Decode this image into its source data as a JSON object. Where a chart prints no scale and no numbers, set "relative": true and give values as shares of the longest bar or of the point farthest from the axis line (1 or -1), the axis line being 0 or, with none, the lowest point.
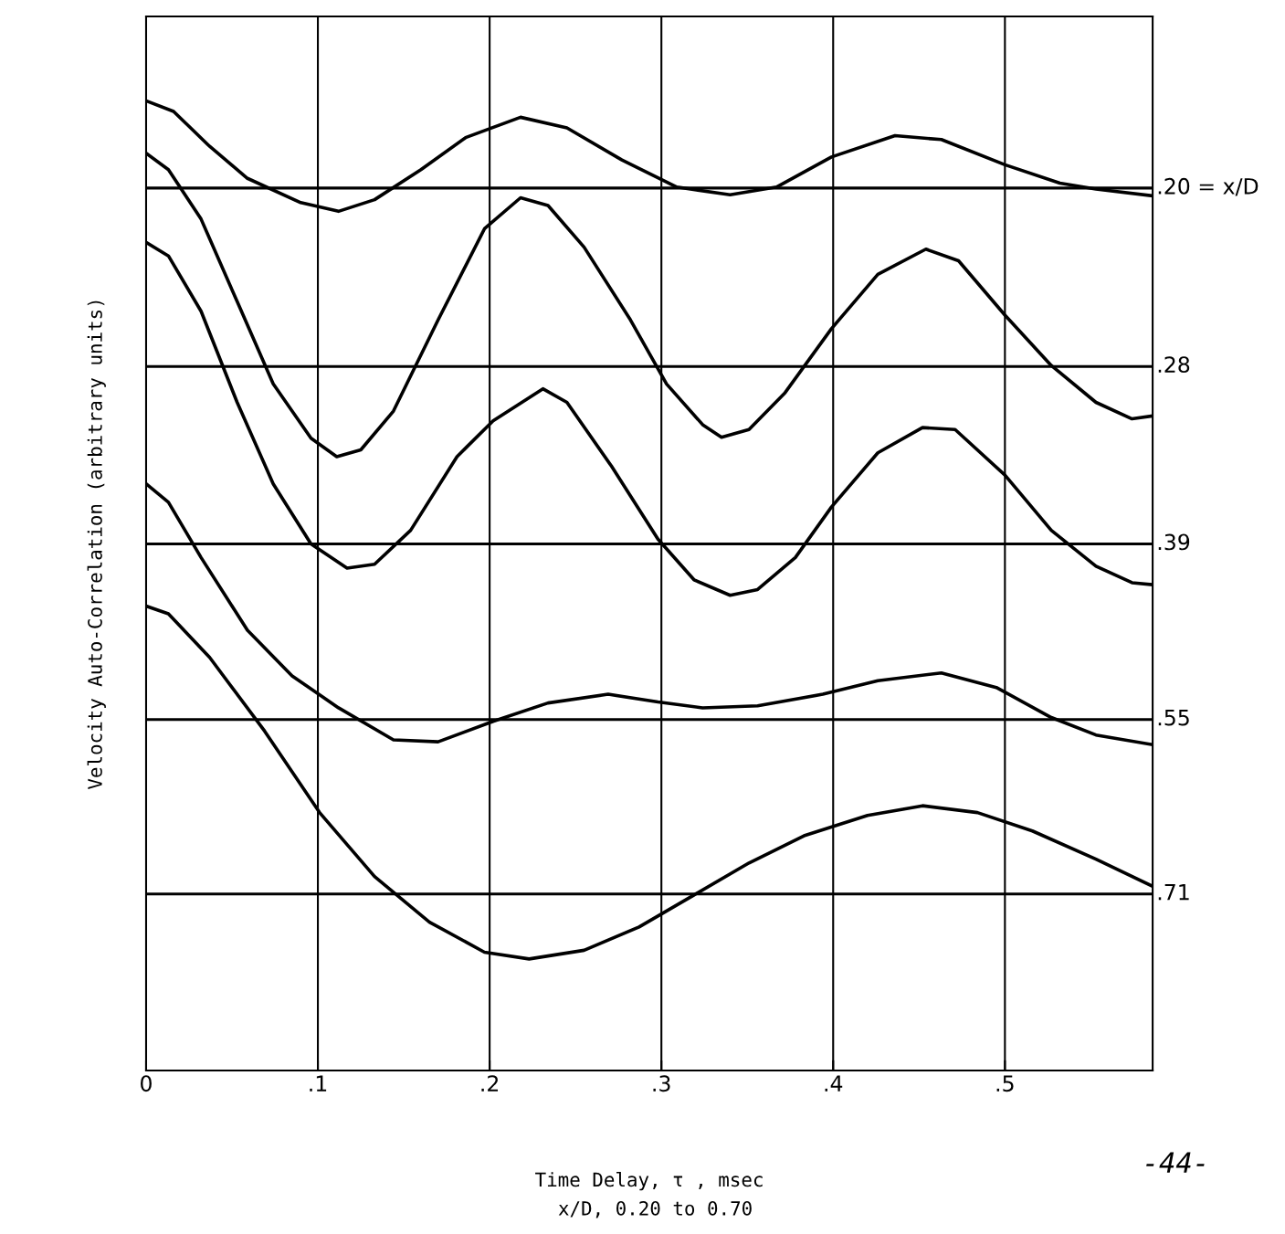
{
  "chart_data": {
    "type": "line",
    "relative": true,
    "xlabel": "Time Delay, τ , msec",
    "ylabel": "Velocity Auto-Correlation (arbitrary units)",
    "annotations": [
      "x/D, 0.20 to 0.70",
      "-44-"
    ],
    "xlim": [
      0,
      0.586
    ],
    "xticks": [
      {
        "value": 0,
        "label": "0"
      },
      {
        "value": 0.1,
        "label": ".1"
      },
      {
        "value": 0.2,
        "label": ".2"
      },
      {
        "value": 0.3,
        "label": ".3"
      },
      {
        "value": 0.4,
        "label": ".4"
      },
      {
        "value": 0.5,
        "label": ".5"
      }
    ],
    "grid": "x",
    "tick_labels": "x",
    "ref_lines": [
      {
        "axis": "y",
        "value": 0.91,
        "color": "#000000"
      },
      {
        "axis": "y",
        "value": 0.726,
        "color": "#000000"
      },
      {
        "axis": "y",
        "value": 0.543,
        "color": "#000000"
      },
      {
        "axis": "y",
        "value": 0.362,
        "color": "#000000"
      },
      {
        "axis": "y",
        "value": 0.182,
        "color": "#000000"
      }
    ],
    "series": [
      {
        "name": ".20 = x/D",
        "color": "#000000",
        "x": [
          0,
          0.016,
          0.037,
          0.059,
          0.09,
          0.112,
          0.133,
          0.16,
          0.186,
          0.218,
          0.245,
          0.277,
          0.309,
          0.34,
          0.367,
          0.399,
          0.436,
          0.463,
          0.5,
          0.532,
          0.553,
          0.586
        ],
        "values": [
          1.0,
          0.989,
          0.953,
          0.92,
          0.895,
          0.886,
          0.898,
          0.929,
          0.962,
          0.983,
          0.972,
          0.939,
          0.911,
          0.903,
          0.911,
          0.942,
          0.964,
          0.96,
          0.934,
          0.915,
          0.909,
          0.902
        ]
      },
      {
        "name": ".28",
        "color": "#000000",
        "x": [
          0,
          0.013,
          0.032,
          0.053,
          0.074,
          0.096,
          0.111,
          0.125,
          0.144,
          0.17,
          0.197,
          0.218,
          0.234,
          0.255,
          0.282,
          0.303,
          0.324,
          0.335,
          0.351,
          0.372,
          0.399,
          0.426,
          0.454,
          0.473,
          0.5,
          0.527,
          0.553,
          0.574,
          0.586
        ],
        "values": [
          0.946,
          0.929,
          0.878,
          0.793,
          0.708,
          0.652,
          0.633,
          0.64,
          0.68,
          0.774,
          0.868,
          0.9,
          0.892,
          0.849,
          0.774,
          0.708,
          0.666,
          0.653,
          0.661,
          0.699,
          0.765,
          0.821,
          0.847,
          0.835,
          0.779,
          0.727,
          0.689,
          0.672,
          0.675
        ]
      },
      {
        "name": ".39",
        "color": "#000000",
        "x": [
          0,
          0.013,
          0.032,
          0.053,
          0.074,
          0.096,
          0.117,
          0.133,
          0.154,
          0.181,
          0.202,
          0.231,
          0.245,
          0.271,
          0.298,
          0.319,
          0.34,
          0.356,
          0.378,
          0.399,
          0.426,
          0.452,
          0.471,
          0.5,
          0.527,
          0.553,
          0.574,
          0.586
        ],
        "values": [
          0.854,
          0.84,
          0.783,
          0.689,
          0.605,
          0.543,
          0.518,
          0.522,
          0.557,
          0.633,
          0.67,
          0.703,
          0.689,
          0.623,
          0.548,
          0.506,
          0.49,
          0.496,
          0.529,
          0.581,
          0.637,
          0.663,
          0.661,
          0.614,
          0.557,
          0.52,
          0.503,
          0.501
        ]
      },
      {
        "name": ".55",
        "color": "#000000",
        "x": [
          0,
          0.013,
          0.032,
          0.059,
          0.085,
          0.112,
          0.144,
          0.17,
          0.202,
          0.234,
          0.269,
          0.298,
          0.324,
          0.356,
          0.394,
          0.426,
          0.463,
          0.495,
          0.527,
          0.553,
          0.586
        ],
        "values": [
          0.605,
          0.586,
          0.529,
          0.454,
          0.407,
          0.374,
          0.341,
          0.339,
          0.36,
          0.379,
          0.388,
          0.38,
          0.374,
          0.376,
          0.388,
          0.402,
          0.41,
          0.395,
          0.364,
          0.346,
          0.336
        ]
      },
      {
        "name": ".71",
        "color": "#000000",
        "x": [
          0,
          0.013,
          0.037,
          0.069,
          0.101,
          0.133,
          0.165,
          0.197,
          0.223,
          0.255,
          0.287,
          0.319,
          0.351,
          0.383,
          0.42,
          0.452,
          0.484,
          0.516,
          0.553,
          0.586
        ],
        "values": [
          0.479,
          0.471,
          0.426,
          0.35,
          0.266,
          0.2,
          0.153,
          0.122,
          0.115,
          0.124,
          0.148,
          0.181,
          0.214,
          0.242,
          0.263,
          0.273,
          0.266,
          0.247,
          0.218,
          0.19
        ]
      }
    ]
  }
}
